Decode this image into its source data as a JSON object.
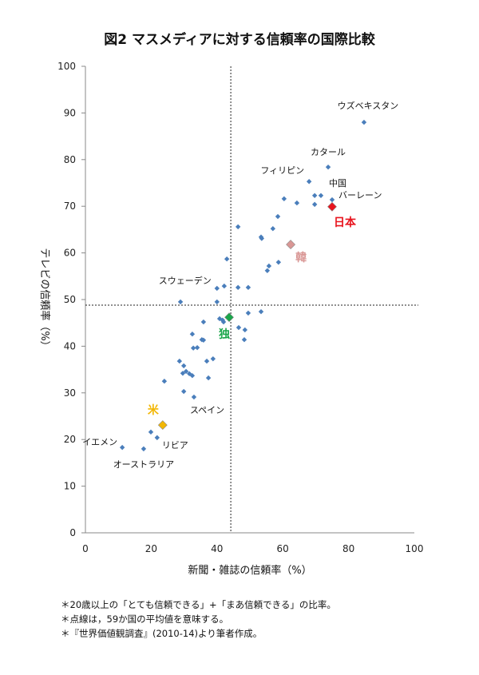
{
  "chart_data": {
    "type": "scatter",
    "title": "図2 マスメディアに対する信頼率の国際比較",
    "xlabel": "新聞・雑誌の信頼率（%）",
    "ylabel": "テレビの信頼率（%）",
    "xlim": [
      0,
      100
    ],
    "ylim": [
      0,
      100
    ],
    "xticks": [
      0,
      20,
      40,
      60,
      80,
      100
    ],
    "yticks": [
      0,
      10,
      20,
      30,
      40,
      50,
      60,
      70,
      80,
      90,
      100
    ],
    "grid": false,
    "point_color": "#4a7ebb",
    "reference_lines": {
      "x": 44.2,
      "y": 48.8,
      "style": "dotted"
    },
    "points": [
      {
        "x": 84.7,
        "y": 88.0,
        "label": "ウズベキスタン"
      },
      {
        "x": 73.8,
        "y": 78.4,
        "label": "カタール"
      },
      {
        "x": 68.0,
        "y": 75.3,
        "label": "フィリピン"
      },
      {
        "x": 71.6,
        "y": 72.3,
        "label": "中国"
      },
      {
        "x": 69.7,
        "y": 72.3
      },
      {
        "x": 75.0,
        "y": 71.4,
        "label": "バーレーン"
      },
      {
        "x": 60.4,
        "y": 71.6
      },
      {
        "x": 64.3,
        "y": 70.7
      },
      {
        "x": 69.7,
        "y": 70.4
      },
      {
        "x": 58.5,
        "y": 67.8
      },
      {
        "x": 46.4,
        "y": 65.6
      },
      {
        "x": 57.0,
        "y": 65.2
      },
      {
        "x": 53.4,
        "y": 63.4
      },
      {
        "x": 53.6,
        "y": 63.1
      },
      {
        "x": 43.0,
        "y": 58.7
      },
      {
        "x": 58.7,
        "y": 58.0
      },
      {
        "x": 55.8,
        "y": 57.2
      },
      {
        "x": 55.3,
        "y": 56.2
      },
      {
        "x": 40.0,
        "y": 52.4,
        "label": "スウェーデン"
      },
      {
        "x": 42.2,
        "y": 52.9
      },
      {
        "x": 46.4,
        "y": 52.6
      },
      {
        "x": 49.5,
        "y": 52.6
      },
      {
        "x": 28.9,
        "y": 49.5
      },
      {
        "x": 40.0,
        "y": 49.5
      },
      {
        "x": 49.5,
        "y": 47.1
      },
      {
        "x": 53.4,
        "y": 47.4
      },
      {
        "x": 40.8,
        "y": 45.9
      },
      {
        "x": 41.7,
        "y": 45.6
      },
      {
        "x": 42.0,
        "y": 45.2
      },
      {
        "x": 35.9,
        "y": 45.2
      },
      {
        "x": 46.6,
        "y": 44.0
      },
      {
        "x": 48.5,
        "y": 43.5
      },
      {
        "x": 48.3,
        "y": 41.4
      },
      {
        "x": 32.5,
        "y": 42.6
      },
      {
        "x": 35.4,
        "y": 41.4
      },
      {
        "x": 35.9,
        "y": 41.3
      },
      {
        "x": 32.8,
        "y": 39.6
      },
      {
        "x": 34.0,
        "y": 39.7
      },
      {
        "x": 38.8,
        "y": 37.3
      },
      {
        "x": 36.9,
        "y": 36.8
      },
      {
        "x": 28.6,
        "y": 36.8
      },
      {
        "x": 29.9,
        "y": 35.8
      },
      {
        "x": 29.6,
        "y": 34.2
      },
      {
        "x": 30.6,
        "y": 34.6
      },
      {
        "x": 31.6,
        "y": 34.1
      },
      {
        "x": 32.5,
        "y": 33.7
      },
      {
        "x": 37.4,
        "y": 33.2
      },
      {
        "x": 24.0,
        "y": 32.5
      },
      {
        "x": 29.9,
        "y": 30.3
      },
      {
        "x": 33.0,
        "y": 29.1,
        "label": "スペイン"
      },
      {
        "x": 19.9,
        "y": 21.6
      },
      {
        "x": 21.8,
        "y": 20.4,
        "label": "リビア"
      },
      {
        "x": 11.2,
        "y": 18.3,
        "label": "イエメン"
      },
      {
        "x": 17.7,
        "y": 18.0,
        "label": "オーストラリア"
      }
    ],
    "highlighted": [
      {
        "x": 75.0,
        "y": 69.9,
        "label": "日本",
        "color": "#e8141e"
      },
      {
        "x": 62.4,
        "y": 61.8,
        "label": "韓",
        "color": "#d99795"
      },
      {
        "x": 43.7,
        "y": 46.2,
        "label": "独",
        "color": "#1aa64a"
      },
      {
        "x": 23.5,
        "y": 23.1,
        "label": "米",
        "color": "#f2b705"
      }
    ]
  },
  "notes": [
    "＊20歳以上の「とても信頼できる」+「まあ信頼できる」の比率。",
    "＊点線は，59か国の平均値を意味する。",
    "＊『世界価値観調査』(2010-14)より筆者作成。"
  ]
}
